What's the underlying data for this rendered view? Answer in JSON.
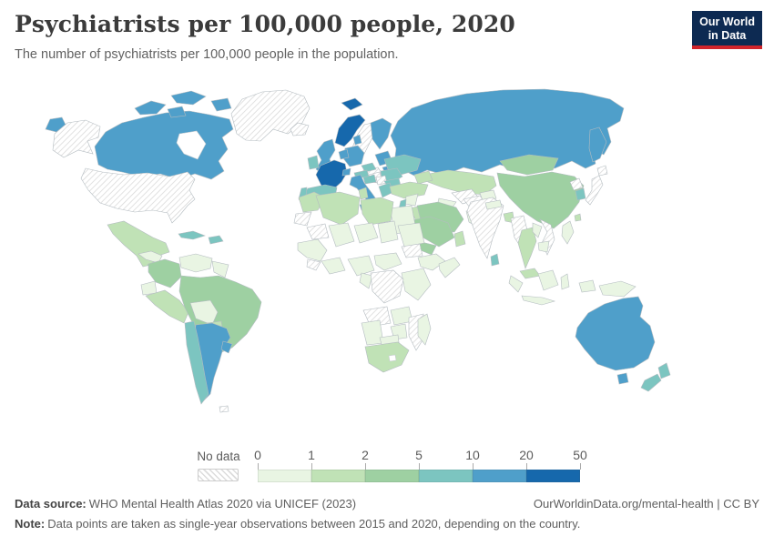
{
  "header": {
    "title": "Psychiatrists per 100,000 people, 2020",
    "subtitle": "The number of psychiatrists per 100,000 people in the population.",
    "logo": {
      "line1": "Our World",
      "line2": "in Data",
      "bg_color": "#0d2a52",
      "accent_color": "#d1242b",
      "text_color": "#ffffff"
    }
  },
  "legend": {
    "no_data_label": "No data",
    "tick_labels": [
      "0",
      "1",
      "2",
      "5",
      "10",
      "20",
      "50"
    ],
    "bin_colors": [
      "#e9f5e3",
      "#c0e2b6",
      "#9ed0a2",
      "#7cc5c0",
      "#4f9fca",
      "#1668ac"
    ],
    "hatch_line_color": "#d8d8d8"
  },
  "footer": {
    "data_source_label": "Data source:",
    "data_source_text": "WHO Mental Health Atlas 2020 via UNICEF (2023)",
    "attribution": "OurWorldinData.org/mental-health | CC BY",
    "note_label": "Note:",
    "note_text": "Data points are taken as single-year observations between 2015 and 2020, depending on the country."
  },
  "chart_data": {
    "type": "choropleth",
    "title": "Psychiatrists per 100,000 people, 2020",
    "unit": "psychiatrists per 100,000 people",
    "year": 2020,
    "legend_bins": [
      {
        "range": "0-1",
        "color": "#e9f5e3"
      },
      {
        "range": "1-2",
        "color": "#c0e2b6"
      },
      {
        "range": "2-5",
        "color": "#9ed0a2"
      },
      {
        "range": "5-10",
        "color": "#7cc5c0"
      },
      {
        "range": "10-20",
        "color": "#4f9fca"
      },
      {
        "range": "20-50",
        "color": "#1668ac"
      },
      {
        "range": "no-data",
        "color": "hatch"
      }
    ],
    "regions": [
      {
        "id": "russia",
        "name": "Russia",
        "bin": "10-20"
      },
      {
        "id": "chukotka",
        "name": "Russia (east tip)",
        "bin": "10-20"
      },
      {
        "id": "canada",
        "name": "Canada",
        "bin": "10-20"
      },
      {
        "id": "alaska",
        "name": "United States (Alaska)",
        "bin": "no-data"
      },
      {
        "id": "united-states",
        "name": "United States",
        "bin": "no-data"
      },
      {
        "id": "greenland",
        "name": "Greenland",
        "bin": "no-data"
      },
      {
        "id": "iceland",
        "name": "Iceland",
        "bin": "no-data"
      },
      {
        "id": "mexico",
        "name": "Mexico",
        "bin": "1-2"
      },
      {
        "id": "central-america",
        "name": "Central America",
        "bin": "0-1"
      },
      {
        "id": "panama-costa-rica",
        "name": "Panama and Costa Rica",
        "bin": "5-10"
      },
      {
        "id": "cuba",
        "name": "Cuba",
        "bin": "5-10"
      },
      {
        "id": "hispaniola",
        "name": "Dominican Republic and Haiti",
        "bin": "5-10"
      },
      {
        "id": "colombia",
        "name": "Colombia",
        "bin": "2-5"
      },
      {
        "id": "venezuela",
        "name": "Venezuela",
        "bin": "0-1"
      },
      {
        "id": "guyana-suriname",
        "name": "Guyana and Suriname",
        "bin": "0-1"
      },
      {
        "id": "ecuador",
        "name": "Ecuador",
        "bin": "0-1"
      },
      {
        "id": "peru",
        "name": "Peru",
        "bin": "1-2"
      },
      {
        "id": "brazil",
        "name": "Brazil",
        "bin": "2-5"
      },
      {
        "id": "bolivia",
        "name": "Bolivia",
        "bin": "0-1"
      },
      {
        "id": "paraguay",
        "name": "Paraguay",
        "bin": "1-2"
      },
      {
        "id": "argentina",
        "name": "Argentina",
        "bin": "10-20"
      },
      {
        "id": "chile",
        "name": "Chile",
        "bin": "5-10"
      },
      {
        "id": "uruguay",
        "name": "Uruguay",
        "bin": "10-20"
      },
      {
        "id": "falkland-islands",
        "name": "Falkland Islands",
        "bin": "no-data"
      },
      {
        "id": "svalbard",
        "name": "Svalbard (Norway)",
        "bin": "20-50"
      },
      {
        "id": "norway",
        "name": "Norway",
        "bin": "20-50"
      },
      {
        "id": "sweden",
        "name": "Sweden",
        "bin": "no-data"
      },
      {
        "id": "finland",
        "name": "Finland",
        "bin": "10-20"
      },
      {
        "id": "baltic-states",
        "name": "Baltic states",
        "bin": "10-20"
      },
      {
        "id": "belarus",
        "name": "Belarus",
        "bin": "10-20"
      },
      {
        "id": "poland",
        "name": "Poland",
        "bin": "no-data"
      },
      {
        "id": "germany",
        "name": "Germany",
        "bin": "10-20"
      },
      {
        "id": "denmark",
        "name": "Denmark",
        "bin": "10-20"
      },
      {
        "id": "benelux",
        "name": "Netherlands and Belgium",
        "bin": "10-20"
      },
      {
        "id": "united-kingdom",
        "name": "United Kingdom",
        "bin": "10-20"
      },
      {
        "id": "ireland",
        "name": "Ireland",
        "bin": "5-10"
      },
      {
        "id": "france",
        "name": "France",
        "bin": "20-50"
      },
      {
        "id": "switzerland",
        "name": "Switzerland",
        "bin": "10-20"
      },
      {
        "id": "czechia",
        "name": "Czechia",
        "bin": "5-10"
      },
      {
        "id": "austria",
        "name": "Austria",
        "bin": "5-10"
      },
      {
        "id": "hungary",
        "name": "Hungary",
        "bin": "no-data"
      },
      {
        "id": "ukraine",
        "name": "Ukraine",
        "bin": "5-10"
      },
      {
        "id": "romania",
        "name": "Romania",
        "bin": "5-10"
      },
      {
        "id": "croatia",
        "name": "Croatia",
        "bin": "5-10"
      },
      {
        "id": "serbia",
        "name": "Serbia",
        "bin": "no-data"
      },
      {
        "id": "bulgaria",
        "name": "Bulgaria",
        "bin": "5-10"
      },
      {
        "id": "greece",
        "name": "Greece",
        "bin": "5-10"
      },
      {
        "id": "italy",
        "name": "Italy",
        "bin": "10-20"
      },
      {
        "id": "spain",
        "name": "Spain",
        "bin": "5-10"
      },
      {
        "id": "portugal",
        "name": "Portugal",
        "bin": "5-10"
      },
      {
        "id": "kazakhstan",
        "name": "Kazakhstan",
        "bin": "1-2"
      },
      {
        "id": "uzbekistan",
        "name": "Uzbekistan",
        "bin": "no-data"
      },
      {
        "id": "turkmenistan",
        "name": "Turkmenistan",
        "bin": "0-1"
      },
      {
        "id": "kyrgyzstan-tajikistan",
        "name": "Kyrgyzstan and Tajikistan",
        "bin": "0-1"
      },
      {
        "id": "caucasus",
        "name": "Caucasus",
        "bin": "1-2"
      },
      {
        "id": "turkey",
        "name": "Turkey",
        "bin": "1-2"
      },
      {
        "id": "syria",
        "name": "Syria",
        "bin": "0-1"
      },
      {
        "id": "israel-jordan",
        "name": "Israel and Jordan",
        "bin": "5-10"
      },
      {
        "id": "iraq",
        "name": "Iraq",
        "bin": "1-2"
      },
      {
        "id": "iran",
        "name": "Iran",
        "bin": "2-5"
      },
      {
        "id": "saudi-arabia",
        "name": "Saudi Arabia",
        "bin": "2-5"
      },
      {
        "id": "yemen",
        "name": "Yemen",
        "bin": "2-5"
      },
      {
        "id": "oman",
        "name": "Oman",
        "bin": "1-2"
      },
      {
        "id": "egypt",
        "name": "Egypt",
        "bin": "0-1"
      },
      {
        "id": "morocco",
        "name": "Morocco",
        "bin": "1-2"
      },
      {
        "id": "western-sahara",
        "name": "Western Sahara",
        "bin": "no-data"
      },
      {
        "id": "algeria",
        "name": "Algeria",
        "bin": "1-2"
      },
      {
        "id": "tunisia",
        "name": "Tunisia",
        "bin": "1-2"
      },
      {
        "id": "libya",
        "name": "Libya",
        "bin": "1-2"
      },
      {
        "id": "mauritania",
        "name": "Mauritania",
        "bin": "no-data"
      },
      {
        "id": "mali",
        "name": "Mali",
        "bin": "0-1"
      },
      {
        "id": "niger",
        "name": "Niger",
        "bin": "0-1"
      },
      {
        "id": "chad",
        "name": "Chad",
        "bin": "0-1"
      },
      {
        "id": "sudan",
        "name": "Sudan",
        "bin": "0-1"
      },
      {
        "id": "south-sudan",
        "name": "South Sudan",
        "bin": "no-data"
      },
      {
        "id": "west-africa",
        "name": "West Africa",
        "bin": "0-1"
      },
      {
        "id": "guinea-region",
        "name": "Guinea region",
        "bin": "no-data"
      },
      {
        "id": "ghana-ivory-coast",
        "name": "Ghana and Ivory Coast",
        "bin": "0-1"
      },
      {
        "id": "nigeria",
        "name": "Nigeria",
        "bin": "0-1"
      },
      {
        "id": "cameroon-car",
        "name": "Cameroon and Central African Republic",
        "bin": "0-1"
      },
      {
        "id": "ethiopia",
        "name": "Ethiopia",
        "bin": "0-1"
      },
      {
        "id": "somalia",
        "name": "Somalia",
        "bin": "0-1"
      },
      {
        "id": "kenya-tanzania",
        "name": "Kenya and Tanzania",
        "bin": "0-1"
      },
      {
        "id": "gabon-congo",
        "name": "Gabon and Congo",
        "bin": "0-1"
      },
      {
        "id": "dr-congo",
        "name": "Democratic Republic of Congo",
        "bin": "no-data"
      },
      {
        "id": "angola",
        "name": "Angola",
        "bin": "no-data"
      },
      {
        "id": "zambia",
        "name": "Zambia",
        "bin": "0-1"
      },
      {
        "id": "mozambique",
        "name": "Mozambique",
        "bin": "no-data"
      },
      {
        "id": "zimbabwe",
        "name": "Zimbabwe",
        "bin": "0-1"
      },
      {
        "id": "namibia",
        "name": "Namibia",
        "bin": "0-1"
      },
      {
        "id": "botswana",
        "name": "Botswana",
        "bin": "0-1"
      },
      {
        "id": "south-africa",
        "name": "South Africa",
        "bin": "1-2"
      },
      {
        "id": "madagascar",
        "name": "Madagascar",
        "bin": "0-1"
      },
      {
        "id": "afghanistan",
        "name": "Afghanistan",
        "bin": "no-data"
      },
      {
        "id": "pakistan",
        "name": "Pakistan",
        "bin": "0-1"
      },
      {
        "id": "india",
        "name": "India",
        "bin": "no-data"
      },
      {
        "id": "nepal",
        "name": "Nepal",
        "bin": "0-1"
      },
      {
        "id": "bangladesh",
        "name": "Bangladesh",
        "bin": "1-2"
      },
      {
        "id": "sri-lanka",
        "name": "Sri Lanka",
        "bin": "5-10"
      },
      {
        "id": "mongolia",
        "name": "Mongolia",
        "bin": "2-5"
      },
      {
        "id": "china",
        "name": "China",
        "bin": "2-5"
      },
      {
        "id": "north-korea",
        "name": "North Korea",
        "bin": "no-data"
      },
      {
        "id": "south-korea",
        "name": "South Korea",
        "bin": "5-10"
      },
      {
        "id": "japan",
        "name": "Japan",
        "bin": "no-data"
      },
      {
        "id": "taiwan",
        "name": "Taiwan",
        "bin": "1-2"
      },
      {
        "id": "myanmar",
        "name": "Myanmar",
        "bin": "no-data"
      },
      {
        "id": "thailand",
        "name": "Thailand",
        "bin": "1-2"
      },
      {
        "id": "laos",
        "name": "Laos",
        "bin": "0-1"
      },
      {
        "id": "vietnam",
        "name": "Vietnam",
        "bin": "no-data"
      },
      {
        "id": "cambodia",
        "name": "Cambodia",
        "bin": "0-1"
      },
      {
        "id": "malaysia",
        "name": "Malaysia",
        "bin": "1-2"
      },
      {
        "id": "philippines",
        "name": "Philippines",
        "bin": "0-1"
      },
      {
        "id": "indonesia",
        "name": "Indonesia",
        "bin": "0-1"
      },
      {
        "id": "papua-new-guinea",
        "name": "Papua New Guinea",
        "bin": "0-1"
      },
      {
        "id": "australia",
        "name": "Australia",
        "bin": "10-20"
      },
      {
        "id": "new-zealand",
        "name": "New Zealand",
        "bin": "5-10"
      }
    ]
  }
}
